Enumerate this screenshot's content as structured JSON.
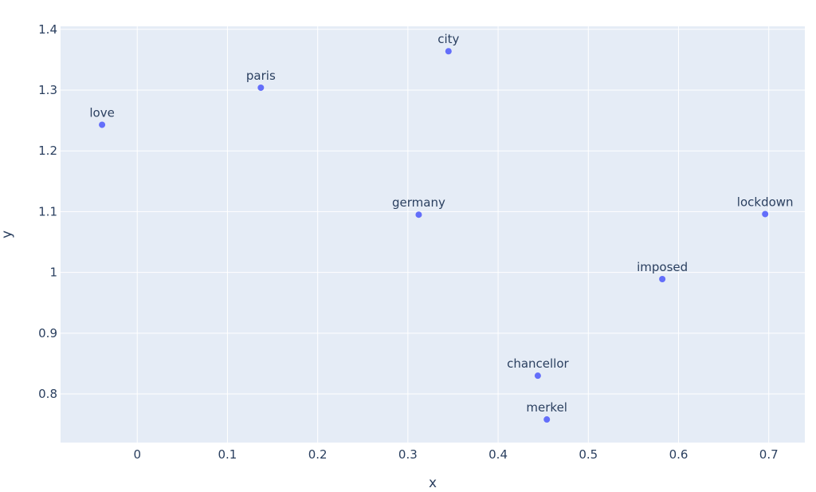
{
  "chart_data": {
    "type": "scatter",
    "title": "",
    "xlabel": "x",
    "ylabel": "y",
    "xlim": [
      -0.085,
      0.74
    ],
    "ylim": [
      0.72,
      1.405
    ],
    "x_ticks": [
      0,
      0.1,
      0.2,
      0.3,
      0.4,
      0.5,
      0.6,
      0.7
    ],
    "x_tick_labels": [
      "0",
      "0.1",
      "0.2",
      "0.3",
      "0.4",
      "0.5",
      "0.6",
      "0.7"
    ],
    "y_ticks": [
      0.8,
      0.9,
      1.0,
      1.1,
      1.2,
      1.3,
      1.4
    ],
    "y_tick_labels": [
      "0.8",
      "0.9",
      "1",
      "1.1",
      "1.2",
      "1.3",
      "1.4"
    ],
    "grid": true,
    "colors": {
      "plot_bg": "#e5ecf6",
      "grid": "#ffffff",
      "marker": "#636efa",
      "text": "#2a3f5f"
    },
    "points": [
      {
        "label": "love",
        "x": -0.039,
        "y": 1.243
      },
      {
        "label": "paris",
        "x": 0.137,
        "y": 1.304
      },
      {
        "label": "city",
        "x": 0.345,
        "y": 1.364
      },
      {
        "label": "germany",
        "x": 0.312,
        "y": 1.095
      },
      {
        "label": "lockdown",
        "x": 0.696,
        "y": 1.096
      },
      {
        "label": "imposed",
        "x": 0.582,
        "y": 0.989
      },
      {
        "label": "chancellor",
        "x": 0.444,
        "y": 0.83
      },
      {
        "label": "merkel",
        "x": 0.454,
        "y": 0.758
      }
    ]
  }
}
